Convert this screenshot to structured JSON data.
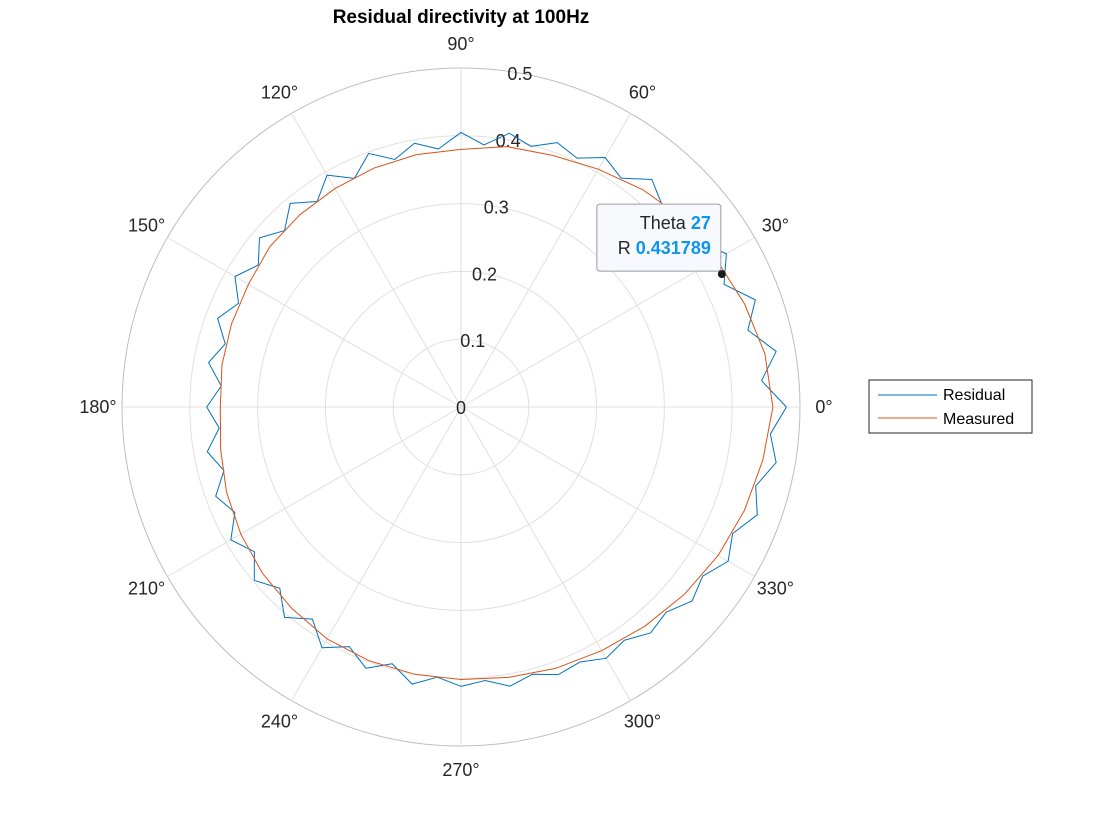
{
  "chart_data": {
    "type": "line",
    "coordinate_system": "polar",
    "title": "Residual directivity at 100Hz",
    "theta_unit": "degrees",
    "theta_ticks": [
      0,
      30,
      60,
      90,
      120,
      150,
      180,
      210,
      240,
      270,
      300,
      330
    ],
    "theta_tick_labels": [
      "0°",
      "30°",
      "60°",
      "90°",
      "120°",
      "150°",
      "180°",
      "210°",
      "240°",
      "270°",
      "300°",
      "330°"
    ],
    "r_ticks": [
      0,
      0.1,
      0.2,
      0.3,
      0.4,
      0.5
    ],
    "r_tick_labels": [
      "0",
      "0.1",
      "0.2",
      "0.3",
      "0.4",
      "0.5"
    ],
    "rlim": [
      0,
      0.5
    ],
    "grid": true,
    "legend_position": "right",
    "series": [
      {
        "name": "Residual",
        "color": "#0072BD",
        "theta": [
          0,
          5,
          10,
          15,
          20,
          25,
          30,
          35,
          40,
          45,
          50,
          55,
          60,
          65,
          70,
          75,
          80,
          85,
          90,
          95,
          100,
          105,
          110,
          115,
          120,
          125,
          130,
          135,
          140,
          145,
          150,
          155,
          160,
          165,
          170,
          175,
          180,
          185,
          190,
          195,
          200,
          205,
          210,
          215,
          220,
          225,
          230,
          235,
          240,
          245,
          250,
          255,
          260,
          265,
          270,
          275,
          280,
          285,
          290,
          295,
          300,
          305,
          310,
          315,
          320,
          325,
          330,
          335,
          340,
          345,
          350,
          355,
          360
        ],
        "r": [
          0.48,
          0.445,
          0.472,
          0.438,
          0.462,
          0.428,
          0.452,
          0.425,
          0.445,
          0.42,
          0.438,
          0.412,
          0.425,
          0.405,
          0.415,
          0.398,
          0.41,
          0.388,
          0.405,
          0.382,
          0.395,
          0.378,
          0.398,
          0.372,
          0.395,
          0.37,
          0.392,
          0.368,
          0.388,
          0.365,
          0.385,
          0.362,
          0.382,
          0.36,
          0.378,
          0.355,
          0.375,
          0.358,
          0.38,
          0.362,
          0.385,
          0.368,
          0.392,
          0.372,
          0.398,
          0.378,
          0.405,
          0.382,
          0.41,
          0.39,
          0.41,
          0.392,
          0.415,
          0.4,
          0.412,
          0.405,
          0.418,
          0.408,
          0.42,
          0.415,
          0.428,
          0.42,
          0.435,
          0.428,
          0.445,
          0.435,
          0.455,
          0.442,
          0.465,
          0.45,
          0.472,
          0.458,
          0.48
        ]
      },
      {
        "name": "Measured",
        "color": "#D95319",
        "theta": [
          0,
          10,
          20,
          30,
          40,
          50,
          60,
          70,
          80,
          90,
          100,
          110,
          120,
          130,
          140,
          150,
          160,
          170,
          180,
          190,
          200,
          210,
          220,
          230,
          240,
          250,
          260,
          270,
          280,
          290,
          300,
          310,
          320,
          330,
          340,
          350,
          360
        ],
        "r": [
          0.46,
          0.455,
          0.445,
          0.435,
          0.43,
          0.418,
          0.405,
          0.395,
          0.39,
          0.38,
          0.378,
          0.375,
          0.372,
          0.37,
          0.368,
          0.362,
          0.36,
          0.358,
          0.355,
          0.36,
          0.368,
          0.375,
          0.382,
          0.388,
          0.395,
          0.398,
          0.4,
          0.402,
          0.405,
          0.41,
          0.415,
          0.422,
          0.43,
          0.438,
          0.445,
          0.452,
          0.46
        ]
      }
    ],
    "datatip": {
      "theta_label": "Theta",
      "theta_value": "27",
      "r_label": "R",
      "r_value": "0.431789",
      "theta": 27,
      "r": 0.431789
    }
  }
}
